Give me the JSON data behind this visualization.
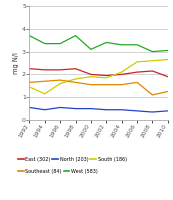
{
  "years": [
    1992,
    1994,
    1996,
    1998,
    2000,
    2002,
    2004,
    2006,
    2008,
    2010
  ],
  "east": [
    2.25,
    2.2,
    2.2,
    2.25,
    2.0,
    1.95,
    2.0,
    2.1,
    2.15,
    1.9
  ],
  "north": [
    0.55,
    0.45,
    0.55,
    0.5,
    0.5,
    0.45,
    0.45,
    0.4,
    0.35,
    0.4
  ],
  "south": [
    1.45,
    1.15,
    1.6,
    1.8,
    1.9,
    1.85,
    2.1,
    2.55,
    2.6,
    2.65
  ],
  "southeast": [
    1.65,
    1.7,
    1.75,
    1.65,
    1.55,
    1.55,
    1.55,
    1.65,
    1.1,
    1.25
  ],
  "west": [
    3.7,
    3.35,
    3.35,
    3.7,
    3.1,
    3.4,
    3.3,
    3.3,
    3.0,
    3.05
  ],
  "colors": {
    "east": "#cc2222",
    "north": "#2244cc",
    "south": "#cccc00",
    "southeast": "#dd8800",
    "west": "#22aa22"
  },
  "labels": {
    "east": "East (302)",
    "north": "North (203)",
    "south": "South (186)",
    "southeast": "Southeast (84)",
    "west": "West (583)"
  },
  "ylabel": "mg N/l",
  "ylim": [
    0,
    5
  ],
  "yticks": [
    0,
    1,
    2,
    3,
    4,
    5
  ],
  "legend_order": [
    "east",
    "north",
    "south",
    "southeast",
    "west"
  ]
}
